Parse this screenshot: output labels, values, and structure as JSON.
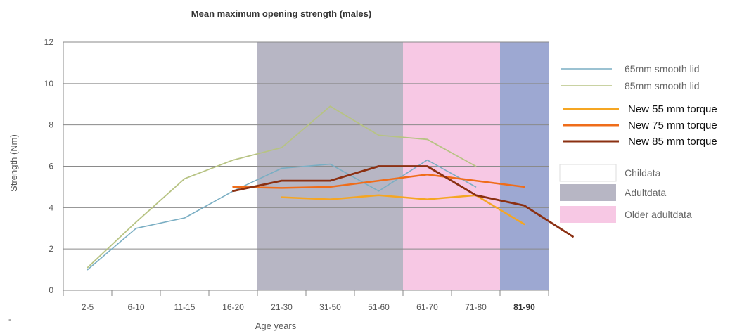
{
  "chart_data": {
    "type": "line",
    "title": "Mean maximum opening strength (males)",
    "xlabel": "Age years",
    "ylabel": "Strength (Nm)",
    "ylim": [
      0,
      12
    ],
    "yticks": [
      "0",
      "2",
      "4",
      "6",
      "8",
      "10",
      "12"
    ],
    "grid": true,
    "categories": [
      "2-5",
      "6-10",
      "11-15",
      "16-20",
      "21-30",
      "31-50",
      "51-60",
      "61-70",
      "71-80",
      "81-90"
    ],
    "bands": [
      {
        "label": "Childata",
        "from": 0,
        "to": 4,
        "color": "#ffffff"
      },
      {
        "label": "Adultdata",
        "from": 4,
        "to": 7,
        "color": "#b7b6c4"
      },
      {
        "label": "Older adultdata",
        "from": 7,
        "to": 9,
        "color": "#f7c8e4"
      },
      {
        "label": "",
        "from": 9,
        "to": 10,
        "color": "#9da8d2"
      }
    ],
    "series": [
      {
        "name": "65mm smooth lid",
        "color": "#7aaec3",
        "width": 1.6,
        "points": [
          [
            0,
            1.0
          ],
          [
            1,
            3.0
          ],
          [
            2,
            3.5
          ],
          [
            3,
            4.8
          ],
          [
            4,
            5.9
          ],
          [
            5,
            6.1
          ],
          [
            6,
            4.8
          ],
          [
            7,
            6.3
          ],
          [
            8,
            5.0
          ]
        ]
      },
      {
        "name": "85mm smooth lid",
        "color": "#b7c383",
        "width": 1.8,
        "points": [
          [
            0,
            1.1
          ],
          [
            1,
            3.3
          ],
          [
            2,
            5.4
          ],
          [
            3,
            6.3
          ],
          [
            4,
            6.9
          ],
          [
            5,
            8.9
          ],
          [
            6,
            7.5
          ],
          [
            7,
            7.3
          ],
          [
            8,
            6.0
          ]
        ]
      },
      {
        "name": "New 55 mm torque",
        "color": "#f5a623",
        "width": 2.5,
        "points": [
          [
            4,
            4.5
          ],
          [
            5,
            4.4
          ],
          [
            6,
            4.6
          ],
          [
            7,
            4.4
          ],
          [
            8,
            4.6
          ],
          [
            9,
            3.2
          ]
        ]
      },
      {
        "name": "New 75 mm torque",
        "color": "#ef6d1a",
        "width": 2.5,
        "points": [
          [
            3,
            5.0
          ],
          [
            4,
            4.95
          ],
          [
            5,
            5.0
          ],
          [
            6,
            5.3
          ],
          [
            7,
            5.6
          ],
          [
            8,
            5.3
          ],
          [
            9,
            5.0
          ]
        ]
      },
      {
        "name": "New 85 mm torque",
        "color": "#8b3012",
        "width": 2.8,
        "points": [
          [
            3,
            4.8
          ],
          [
            4,
            5.3
          ],
          [
            5,
            5.3
          ],
          [
            6,
            6.0
          ],
          [
            7,
            6.0
          ],
          [
            8,
            4.6
          ],
          [
            9,
            4.1
          ],
          [
            10,
            2.6
          ]
        ]
      }
    ],
    "legend_position": "right",
    "legend_lines": [
      "65mm smooth lid",
      "85mm smooth lid",
      "New 55 mm torque",
      "New 75 mm torque",
      "New 85 mm torque"
    ],
    "legend_boxes": [
      "Childata",
      "Adultdata",
      "Older adultdata"
    ],
    "footnote": "-"
  }
}
